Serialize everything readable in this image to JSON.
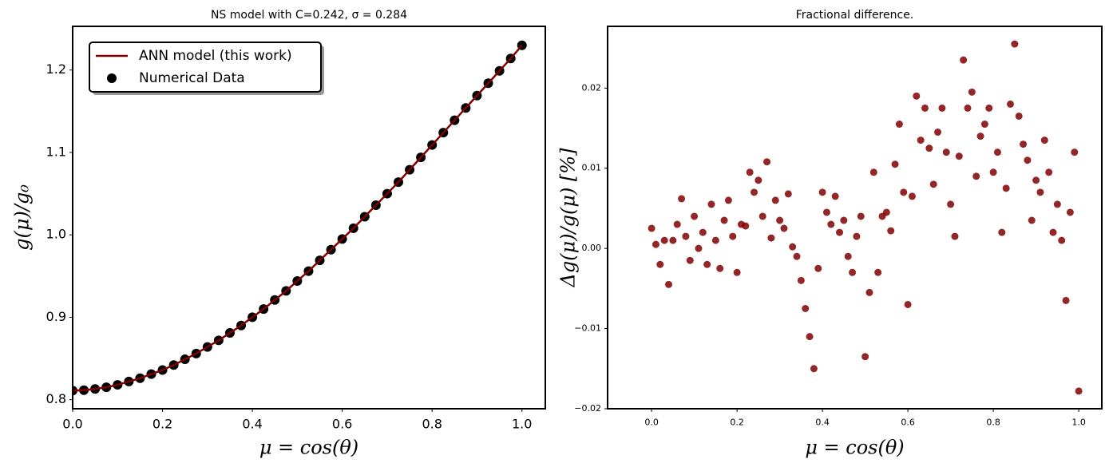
{
  "chart_data": [
    {
      "type": "line",
      "title": "NS model with C=0.242, σ = 0.284",
      "xlabel": "μ = cos(θ)",
      "ylabel": "g(μ)/g₀",
      "x": [
        0,
        0.025,
        0.05,
        0.075,
        0.1,
        0.125,
        0.15,
        0.175,
        0.2,
        0.225,
        0.25,
        0.275,
        0.3,
        0.325,
        0.35,
        0.375,
        0.4,
        0.425,
        0.45,
        0.475,
        0.5,
        0.525,
        0.55,
        0.575,
        0.6,
        0.625,
        0.65,
        0.675,
        0.7,
        0.725,
        0.75,
        0.775,
        0.8,
        0.825,
        0.85,
        0.875,
        0.9,
        0.925,
        0.95,
        0.975,
        1.0
      ],
      "series": [
        {
          "name": "ANN model (this work)",
          "type": "line",
          "color": "#800000",
          "values": [
            0.811,
            0.8115,
            0.813,
            0.815,
            0.818,
            0.822,
            0.826,
            0.831,
            0.836,
            0.842,
            0.849,
            0.856,
            0.864,
            0.872,
            0.881,
            0.89,
            0.9,
            0.91,
            0.921,
            0.932,
            0.944,
            0.956,
            0.969,
            0.982,
            0.995,
            1.008,
            1.022,
            1.036,
            1.05,
            1.064,
            1.079,
            1.094,
            1.109,
            1.124,
            1.139,
            1.154,
            1.169,
            1.184,
            1.199,
            1.214,
            1.23
          ]
        },
        {
          "name": "Numerical Data",
          "type": "scatter",
          "color": "#000000",
          "values": [
            0.811,
            0.8115,
            0.813,
            0.815,
            0.818,
            0.822,
            0.826,
            0.831,
            0.836,
            0.842,
            0.849,
            0.856,
            0.864,
            0.872,
            0.881,
            0.89,
            0.9,
            0.91,
            0.921,
            0.932,
            0.944,
            0.956,
            0.969,
            0.982,
            0.995,
            1.008,
            1.022,
            1.036,
            1.05,
            1.064,
            1.079,
            1.094,
            1.109,
            1.124,
            1.139,
            1.154,
            1.169,
            1.184,
            1.199,
            1.214,
            1.23
          ]
        }
      ],
      "xlim": [
        0,
        1.052
      ],
      "ylim": [
        0.789,
        1.253
      ],
      "xticks": [
        {
          "value": 0,
          "label": "0.0"
        },
        0.2,
        0.4,
        0.6,
        0.8,
        {
          "value": 1,
          "label": "1.0"
        }
      ],
      "yticks": [
        0.8,
        0.9,
        {
          "value": 1,
          "label": "1.0"
        },
        1.1,
        1.2
      ],
      "legend": "upper left"
    },
    {
      "type": "scatter",
      "title": "Fractional difference.",
      "xlabel": "μ = cos(θ)",
      "ylabel": "Δg(μ)/g(μ)  [%]",
      "x": [
        0,
        0.01,
        0.02,
        0.03,
        0.04,
        0.05,
        0.06,
        0.07,
        0.08,
        0.09,
        0.1,
        0.11,
        0.12,
        0.13,
        0.14,
        0.15,
        0.16,
        0.17,
        0.18,
        0.19,
        0.2,
        0.21,
        0.22,
        0.23,
        0.24,
        0.25,
        0.26,
        0.27,
        0.28,
        0.29,
        0.3,
        0.31,
        0.32,
        0.33,
        0.34,
        0.35,
        0.36,
        0.37,
        0.38,
        0.39,
        0.4,
        0.41,
        0.42,
        0.43,
        0.44,
        0.45,
        0.46,
        0.47,
        0.48,
        0.49,
        0.5,
        0.51,
        0.52,
        0.53,
        0.54,
        0.55,
        0.56,
        0.57,
        0.58,
        0.59,
        0.6,
        0.61,
        0.62,
        0.63,
        0.64,
        0.65,
        0.66,
        0.67,
        0.68,
        0.69,
        0.7,
        0.71,
        0.72,
        0.73,
        0.74,
        0.75,
        0.76,
        0.77,
        0.78,
        0.79,
        0.8,
        0.81,
        0.82,
        0.83,
        0.84,
        0.85,
        0.86,
        0.87,
        0.88,
        0.89,
        0.9,
        0.91,
        0.92,
        0.93,
        0.94,
        0.95,
        0.96,
        0.97,
        0.98,
        0.99,
        1.0
      ],
      "series": [
        {
          "name": "Fractional difference",
          "type": "scatter",
          "color": "#800000",
          "values": [
            0.0025,
            0.0005,
            -0.002,
            0.001,
            -0.0045,
            0.001,
            0.003,
            0.0062,
            0.0015,
            -0.0015,
            0.004,
            0.0,
            0.002,
            -0.002,
            0.0055,
            0.001,
            -0.0025,
            0.0035,
            0.006,
            0.0015,
            -0.003,
            0.003,
            0.0028,
            0.0095,
            0.007,
            0.0085,
            0.004,
            0.0108,
            0.0013,
            0.006,
            0.0035,
            0.0025,
            0.0068,
            0.0002,
            -0.001,
            -0.004,
            -0.0075,
            -0.011,
            -0.015,
            -0.0025,
            0.007,
            0.0045,
            0.003,
            0.0065,
            0.002,
            0.0035,
            -0.001,
            -0.003,
            0.0015,
            0.004,
            -0.0135,
            -0.0055,
            0.0095,
            -0.003,
            0.004,
            0.0045,
            0.0022,
            0.0105,
            0.0155,
            0.007,
            -0.007,
            0.0065,
            0.019,
            0.0135,
            0.0175,
            0.0125,
            0.008,
            0.0145,
            0.0175,
            0.012,
            0.0055,
            0.0015,
            0.0115,
            0.0235,
            0.0175,
            0.0195,
            0.009,
            0.014,
            0.0155,
            0.0175,
            0.0095,
            0.012,
            0.002,
            0.0075,
            0.018,
            0.0255,
            0.0165,
            0.013,
            0.011,
            0.0035,
            0.0085,
            0.007,
            0.0135,
            0.0095,
            0.002,
            0.0055,
            0.001,
            -0.0065,
            0.0045,
            0.012,
            -0.0178
          ]
        }
      ],
      "xlim": [
        -0.103,
        1.054
      ],
      "ylim": [
        -0.02,
        0.0277
      ],
      "xticks": [
        {
          "value": 0,
          "label": "0.0"
        },
        0.2,
        0.4,
        0.6,
        0.8,
        {
          "value": 1,
          "label": "1.0"
        }
      ],
      "yticks": [
        {
          "value": -0.02,
          "label": "−0.02"
        },
        {
          "value": -0.01,
          "label": "−0.01"
        },
        {
          "value": 0,
          "label": "0.00"
        },
        0.01,
        0.02
      ]
    }
  ]
}
